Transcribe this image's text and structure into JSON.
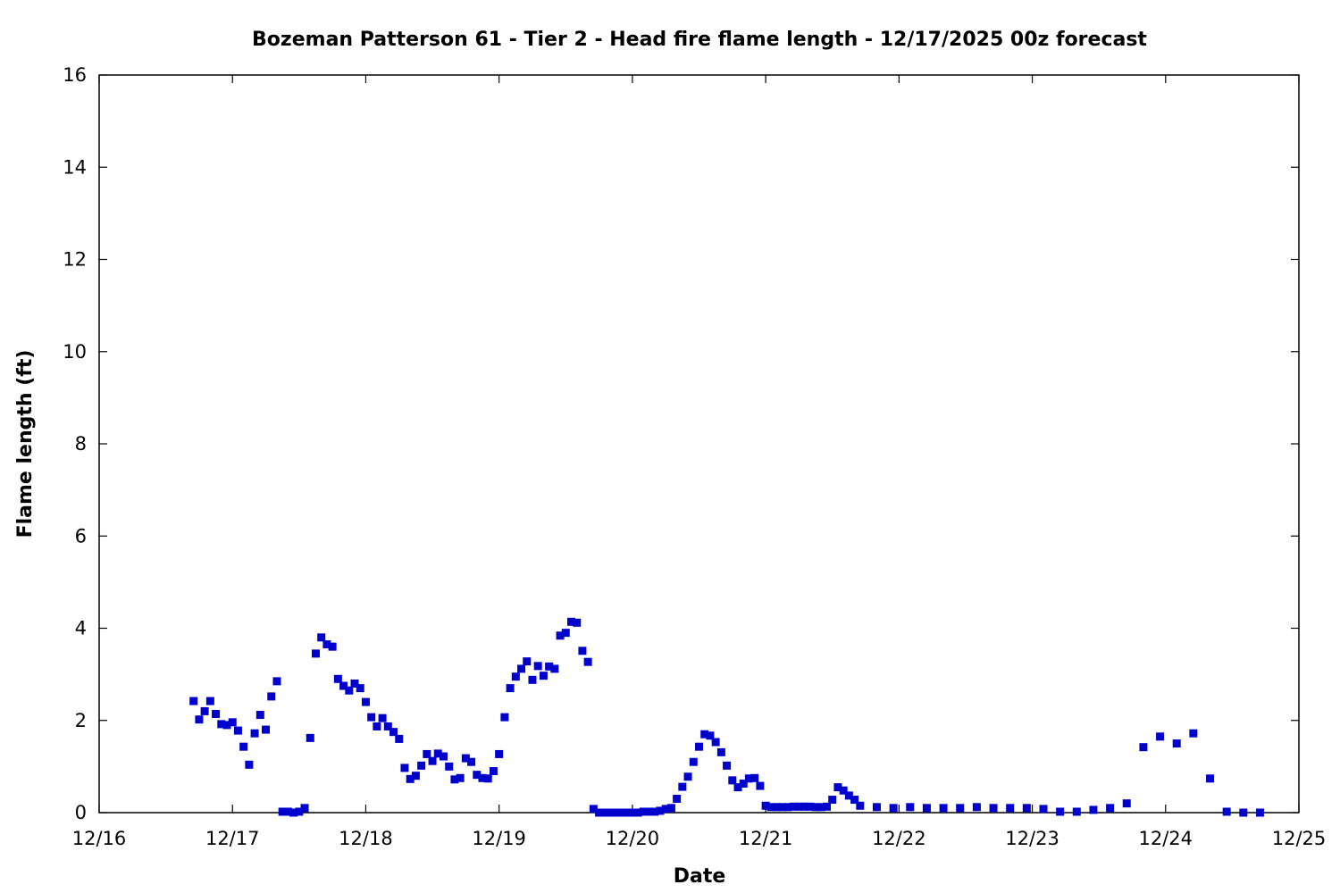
{
  "chart_data": {
    "type": "scatter",
    "title": "Bozeman Patterson 61 - Tier 2 - Head fire flame length - 12/17/2025 00z forecast",
    "xlabel": "Date",
    "ylabel": "Flame length (ft)",
    "xlim": [
      "2025-12-16 00:00",
      "2025-12-25 00:00"
    ],
    "ylim": [
      0,
      16
    ],
    "x_ticks": [
      "12/16",
      "12/17",
      "12/18",
      "12/19",
      "12/20",
      "12/21",
      "12/22",
      "12/23",
      "12/24",
      "12/25"
    ],
    "y_ticks": [
      "0",
      "2",
      "4",
      "6",
      "8",
      "10",
      "12",
      "14",
      "16"
    ],
    "y_tick_values": [
      0,
      2,
      4,
      6,
      8,
      10,
      12,
      14,
      16
    ],
    "grid": false,
    "marker": "square",
    "color": "#0000cc",
    "points": [
      [
        "2025-12-16 17:00",
        2.42
      ],
      [
        "2025-12-16 18:00",
        2.02
      ],
      [
        "2025-12-16 19:00",
        2.2
      ],
      [
        "2025-12-16 20:00",
        2.42
      ],
      [
        "2025-12-16 21:00",
        2.14
      ],
      [
        "2025-12-16 22:00",
        1.92
      ],
      [
        "2025-12-16 23:00",
        1.9
      ],
      [
        "2025-12-17 00:00",
        1.96
      ],
      [
        "2025-12-17 01:00",
        1.78
      ],
      [
        "2025-12-17 02:00",
        1.43
      ],
      [
        "2025-12-17 03:00",
        1.04
      ],
      [
        "2025-12-17 04:00",
        1.72
      ],
      [
        "2025-12-17 05:00",
        2.12
      ],
      [
        "2025-12-17 06:00",
        1.8
      ],
      [
        "2025-12-17 07:00",
        2.52
      ],
      [
        "2025-12-17 08:00",
        2.85
      ],
      [
        "2025-12-17 09:00",
        0.02
      ],
      [
        "2025-12-17 10:00",
        0.02
      ],
      [
        "2025-12-17 11:00",
        0.0
      ],
      [
        "2025-12-17 12:00",
        0.02
      ],
      [
        "2025-12-17 13:00",
        0.1
      ],
      [
        "2025-12-17 14:00",
        1.62
      ],
      [
        "2025-12-17 15:00",
        3.45
      ],
      [
        "2025-12-17 16:00",
        3.8
      ],
      [
        "2025-12-17 17:00",
        3.65
      ],
      [
        "2025-12-17 18:00",
        3.6
      ],
      [
        "2025-12-17 19:00",
        2.9
      ],
      [
        "2025-12-17 20:00",
        2.75
      ],
      [
        "2025-12-17 21:00",
        2.65
      ],
      [
        "2025-12-17 22:00",
        2.8
      ],
      [
        "2025-12-17 23:00",
        2.7
      ],
      [
        "2025-12-18 00:00",
        2.4
      ],
      [
        "2025-12-18 01:00",
        2.07
      ],
      [
        "2025-12-18 02:00",
        1.87
      ],
      [
        "2025-12-18 03:00",
        2.05
      ],
      [
        "2025-12-18 04:00",
        1.87
      ],
      [
        "2025-12-18 05:00",
        1.75
      ],
      [
        "2025-12-18 06:00",
        1.6
      ],
      [
        "2025-12-18 07:00",
        0.97
      ],
      [
        "2025-12-18 08:00",
        0.73
      ],
      [
        "2025-12-18 09:00",
        0.8
      ],
      [
        "2025-12-18 10:00",
        1.02
      ],
      [
        "2025-12-18 11:00",
        1.27
      ],
      [
        "2025-12-18 12:00",
        1.12
      ],
      [
        "2025-12-18 13:00",
        1.28
      ],
      [
        "2025-12-18 14:00",
        1.22
      ],
      [
        "2025-12-18 15:00",
        1.0
      ],
      [
        "2025-12-18 16:00",
        0.72
      ],
      [
        "2025-12-18 17:00",
        0.75
      ],
      [
        "2025-12-18 18:00",
        1.18
      ],
      [
        "2025-12-18 19:00",
        1.1
      ],
      [
        "2025-12-18 20:00",
        0.82
      ],
      [
        "2025-12-18 21:00",
        0.75
      ],
      [
        "2025-12-18 22:00",
        0.74
      ],
      [
        "2025-12-18 23:00",
        0.9
      ],
      [
        "2025-12-19 00:00",
        1.27
      ],
      [
        "2025-12-19 01:00",
        2.07
      ],
      [
        "2025-12-19 02:00",
        2.7
      ],
      [
        "2025-12-19 03:00",
        2.95
      ],
      [
        "2025-12-19 04:00",
        3.12
      ],
      [
        "2025-12-19 05:00",
        3.28
      ],
      [
        "2025-12-19 06:00",
        2.88
      ],
      [
        "2025-12-19 07:00",
        3.18
      ],
      [
        "2025-12-19 08:00",
        2.97
      ],
      [
        "2025-12-19 09:00",
        3.17
      ],
      [
        "2025-12-19 10:00",
        3.12
      ],
      [
        "2025-12-19 11:00",
        3.84
      ],
      [
        "2025-12-19 12:00",
        3.9
      ],
      [
        "2025-12-19 13:00",
        4.14
      ],
      [
        "2025-12-19 14:00",
        4.12
      ],
      [
        "2025-12-19 15:00",
        3.51
      ],
      [
        "2025-12-19 16:00",
        3.27
      ],
      [
        "2025-12-19 17:00",
        0.08
      ],
      [
        "2025-12-19 18:00",
        0
      ],
      [
        "2025-12-19 19:00",
        0
      ],
      [
        "2025-12-19 20:00",
        0
      ],
      [
        "2025-12-19 21:00",
        0
      ],
      [
        "2025-12-19 22:00",
        0
      ],
      [
        "2025-12-19 23:00",
        0
      ],
      [
        "2025-12-20 00:00",
        0
      ],
      [
        "2025-12-20 01:00",
        0
      ],
      [
        "2025-12-20 02:00",
        0.02
      ],
      [
        "2025-12-20 03:00",
        0.02
      ],
      [
        "2025-12-20 04:00",
        0.02
      ],
      [
        "2025-12-20 05:00",
        0.04
      ],
      [
        "2025-12-20 06:00",
        0.08
      ],
      [
        "2025-12-20 07:00",
        0.1
      ],
      [
        "2025-12-20 08:00",
        0.3
      ],
      [
        "2025-12-20 09:00",
        0.56
      ],
      [
        "2025-12-20 10:00",
        0.78
      ],
      [
        "2025-12-20 11:00",
        1.1
      ],
      [
        "2025-12-20 12:00",
        1.43
      ],
      [
        "2025-12-20 13:00",
        1.7
      ],
      [
        "2025-12-20 14:00",
        1.67
      ],
      [
        "2025-12-20 15:00",
        1.53
      ],
      [
        "2025-12-20 16:00",
        1.31
      ],
      [
        "2025-12-20 17:00",
        1.02
      ],
      [
        "2025-12-20 18:00",
        0.7
      ],
      [
        "2025-12-20 19:00",
        0.55
      ],
      [
        "2025-12-20 20:00",
        0.63
      ],
      [
        "2025-12-20 21:00",
        0.74
      ],
      [
        "2025-12-20 22:00",
        0.75
      ],
      [
        "2025-12-20 23:00",
        0.58
      ],
      [
        "2025-12-21 00:00",
        0.15
      ],
      [
        "2025-12-21 01:00",
        0.12
      ],
      [
        "2025-12-21 02:00",
        0.12
      ],
      [
        "2025-12-21 03:00",
        0.12
      ],
      [
        "2025-12-21 04:00",
        0.12
      ],
      [
        "2025-12-21 05:00",
        0.13
      ],
      [
        "2025-12-21 06:00",
        0.13
      ],
      [
        "2025-12-21 07:00",
        0.13
      ],
      [
        "2025-12-21 08:00",
        0.13
      ],
      [
        "2025-12-21 09:00",
        0.12
      ],
      [
        "2025-12-21 10:00",
        0.12
      ],
      [
        "2025-12-21 11:00",
        0.13
      ],
      [
        "2025-12-21 12:00",
        0.28
      ],
      [
        "2025-12-21 13:00",
        0.55
      ],
      [
        "2025-12-21 14:00",
        0.48
      ],
      [
        "2025-12-21 15:00",
        0.37
      ],
      [
        "2025-12-21 16:00",
        0.28
      ],
      [
        "2025-12-21 17:00",
        0.15
      ],
      [
        "2025-12-21 20:00",
        0.12
      ],
      [
        "2025-12-21 23:00",
        0.1
      ],
      [
        "2025-12-22 02:00",
        0.12
      ],
      [
        "2025-12-22 05:00",
        0.1
      ],
      [
        "2025-12-22 08:00",
        0.1
      ],
      [
        "2025-12-22 11:00",
        0.1
      ],
      [
        "2025-12-22 14:00",
        0.12
      ],
      [
        "2025-12-22 17:00",
        0.1
      ],
      [
        "2025-12-22 20:00",
        0.1
      ],
      [
        "2025-12-22 23:00",
        0.1
      ],
      [
        "2025-12-23 02:00",
        0.08
      ],
      [
        "2025-12-23 05:00",
        0.02
      ],
      [
        "2025-12-23 08:00",
        0.02
      ],
      [
        "2025-12-23 11:00",
        0.06
      ],
      [
        "2025-12-23 14:00",
        0.1
      ],
      [
        "2025-12-23 17:00",
        0.2
      ],
      [
        "2025-12-23 20:00",
        1.42
      ],
      [
        "2025-12-23 23:00",
        1.65
      ],
      [
        "2025-12-24 02:00",
        1.5
      ],
      [
        "2025-12-24 05:00",
        1.72
      ],
      [
        "2025-12-24 08:00",
        0.74
      ],
      [
        "2025-12-24 11:00",
        0.02
      ],
      [
        "2025-12-24 14:00",
        0
      ],
      [
        "2025-12-24 17:00",
        0
      ]
    ]
  }
}
